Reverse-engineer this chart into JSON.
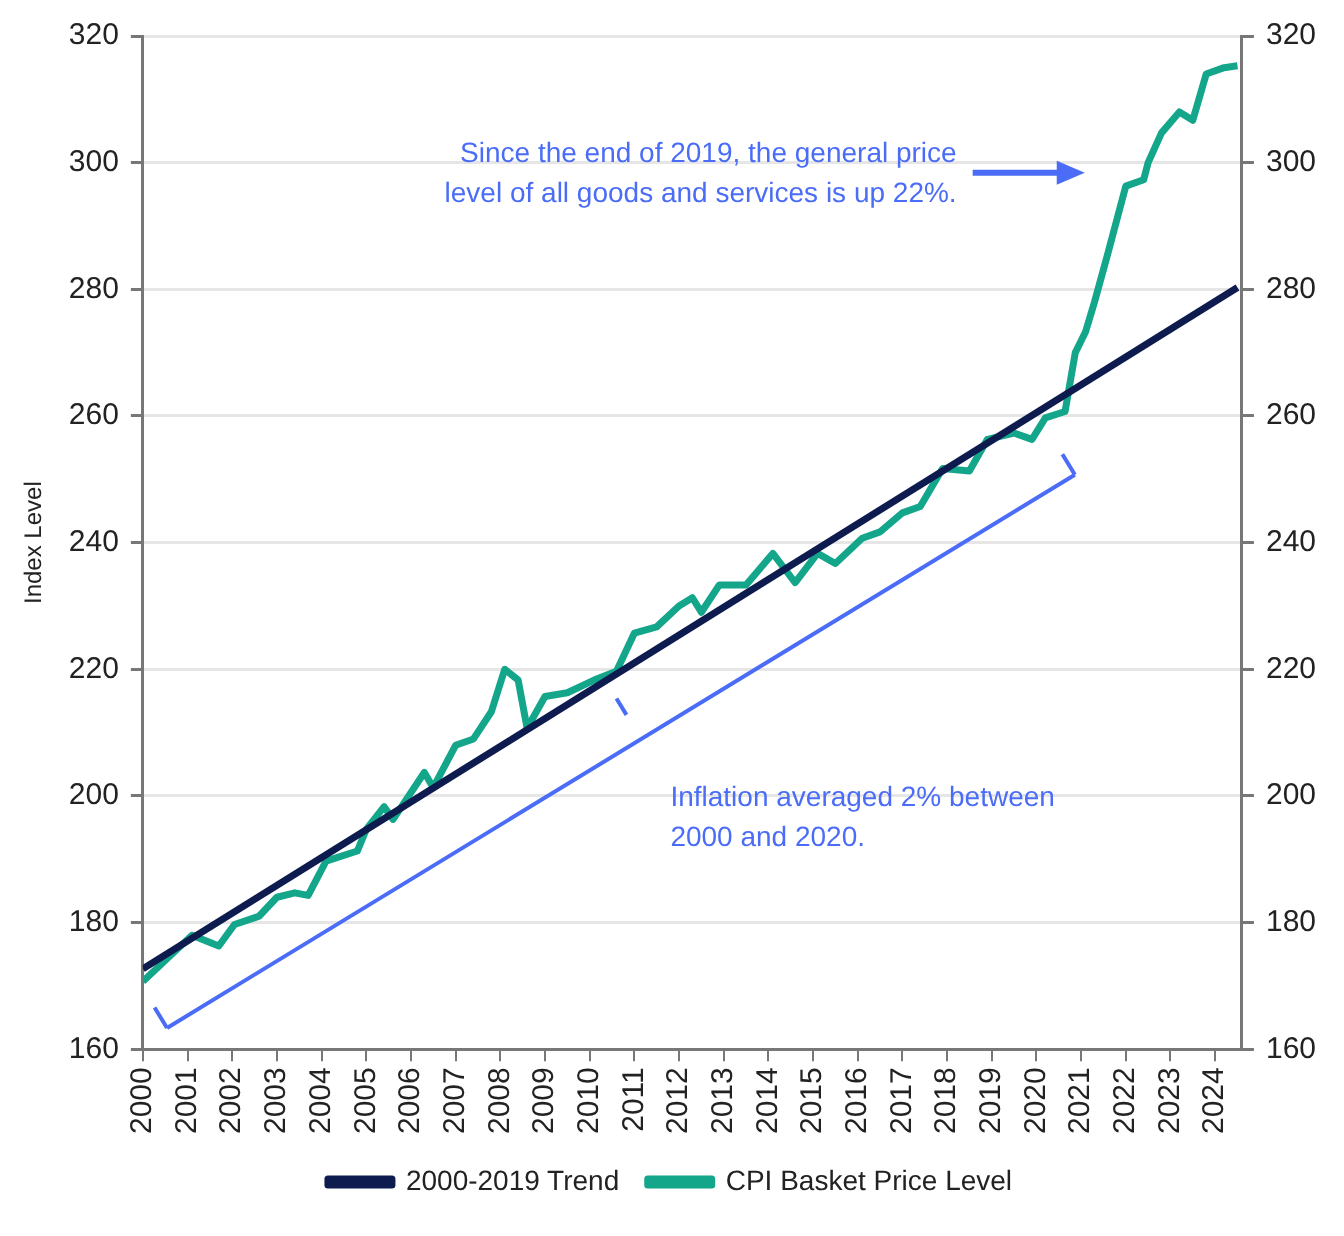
{
  "chart_data": {
    "type": "line",
    "ylabel": "Index Level",
    "xlim": [
      2000,
      2024.6
    ],
    "xticks": [
      2000,
      2001,
      2002,
      2003,
      2004,
      2005,
      2006,
      2007,
      2008,
      2009,
      2010,
      2011,
      2012,
      2013,
      2014,
      2015,
      2016,
      2017,
      2018,
      2019,
      2020,
      2021,
      2022,
      2023,
      2024
    ],
    "ylim": [
      160,
      320
    ],
    "yticks": [
      160,
      180,
      200,
      220,
      240,
      260,
      280,
      300,
      320
    ],
    "y2lim": [
      160,
      320
    ],
    "y2ticks": [
      160,
      180,
      200,
      220,
      240,
      260,
      280,
      300,
      320
    ],
    "grid": "y",
    "legend": "bottom",
    "marker": "none",
    "line_style": "solid",
    "series": [
      {
        "name": "2000-2019 Trend",
        "color": "#0d1b4f",
        "x": [
          2000,
          2024.5
        ],
        "values": [
          172.7,
          280.3
        ]
      },
      {
        "name": "CPI Basket Price Level",
        "color": "#13a68a",
        "x": [
          2000,
          2001.1,
          2001.7,
          2002.05,
          2002.6,
          2003.0,
          2003.4,
          2003.7,
          2004.1,
          2004.8,
          2005.0,
          2005.4,
          2005.6,
          2006.3,
          2006.5,
          2007.0,
          2007.4,
          2007.8,
          2008.1,
          2008.4,
          2008.6,
          2009.0,
          2009.5,
          2010.1,
          2010.6,
          2011.0,
          2011.5,
          2012.0,
          2012.3,
          2012.5,
          2012.9,
          2013.5,
          2014.1,
          2014.6,
          2015.1,
          2015.5,
          2016.1,
          2016.5,
          2017.0,
          2017.4,
          2017.9,
          2018.5,
          2018.9,
          2019.5,
          2019.9,
          2020.2,
          2020.64,
          2020.87,
          2021.1,
          2021.3,
          2021.6,
          2022.0,
          2022.4,
          2022.5,
          2022.8,
          2023.2,
          2023.5,
          2023.8,
          2024.2,
          2024.5
        ],
        "values": [
          170.7,
          178,
          176.3,
          179.7,
          181,
          184,
          184.7,
          184.3,
          189.7,
          191.3,
          194.7,
          198.3,
          196.3,
          203.7,
          201.3,
          208,
          209,
          213.3,
          220,
          218.3,
          210.7,
          215.7,
          216.3,
          218.3,
          219.7,
          225.7,
          226.7,
          230,
          231.3,
          229,
          233.3,
          233.3,
          238.3,
          233.7,
          238.3,
          236.7,
          240.7,
          241.7,
          244.7,
          245.7,
          251.7,
          251.3,
          256.3,
          257.3,
          256.3,
          259.7,
          260.7,
          270,
          273.3,
          278,
          285.7,
          296.3,
          297.3,
          300,
          304.7,
          308,
          306.7,
          314,
          315,
          315.3
        ]
      }
    ],
    "annotations": [
      "Since the end of 2019, the general price level of all goods and services is up 22%.",
      "Inflation averaged 2% between 2000 and 2020."
    ]
  }
}
